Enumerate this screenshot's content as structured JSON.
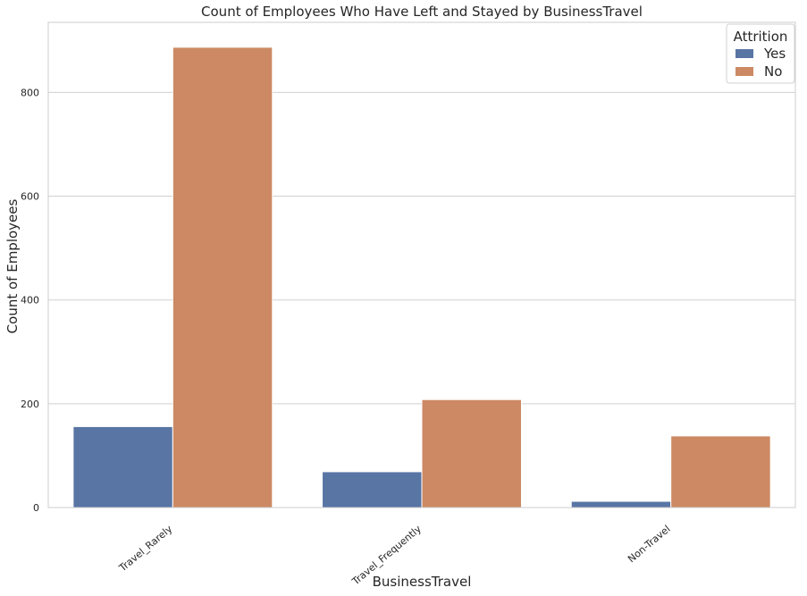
{
  "chart_data": {
    "type": "bar",
    "title": "Count of Employees Who Have Left and Stayed by BusinessTravel",
    "xlabel": "BusinessTravel",
    "ylabel": "Count of Employees",
    "categories": [
      "Travel_Rarely",
      "Travel_Frequently",
      "Non-Travel"
    ],
    "series": [
      {
        "name": "Yes",
        "values": [
          156,
          69,
          12
        ],
        "color": "#5875a4"
      },
      {
        "name": "No",
        "values": [
          887,
          208,
          138
        ],
        "color": "#cc8963"
      }
    ],
    "ylim": [
      0,
      935
    ],
    "yticks": [
      0,
      200,
      400,
      600,
      800
    ],
    "grid": "horizontal",
    "legend": {
      "title": "Attrition",
      "placement": "top-right"
    }
  }
}
